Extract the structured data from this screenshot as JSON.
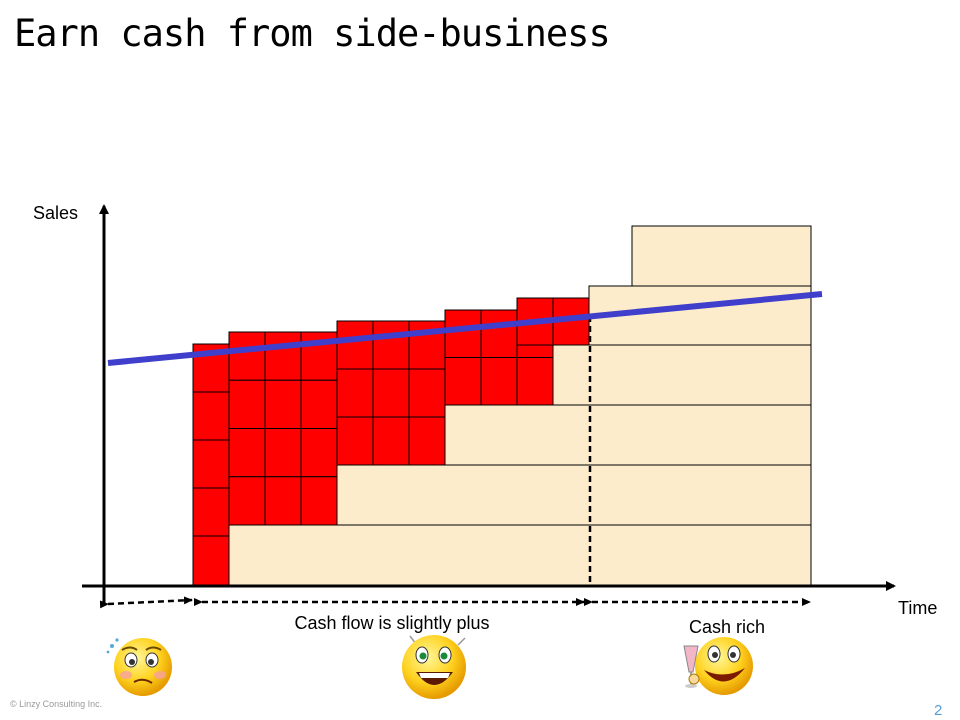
{
  "slide": {
    "title": "Earn cash from side-business",
    "copyright": "© Linzy Consulting Inc.",
    "page_number": "2"
  },
  "diagram": {
    "y_axis_label": "Sales",
    "x_axis_label": "Time",
    "phase_labels": [
      "Cash flow is slightly plus",
      "Cash rich"
    ],
    "colors": {
      "loss_block": "#ff0000",
      "profit_block": "#fdeccb",
      "trend_line": "#3f3fcc",
      "block_stroke": "#000000"
    },
    "faces": [
      {
        "icon": "worried-face-icon"
      },
      {
        "icon": "excited-face-icon"
      },
      {
        "icon": "celebrating-face-icon"
      }
    ]
  }
}
